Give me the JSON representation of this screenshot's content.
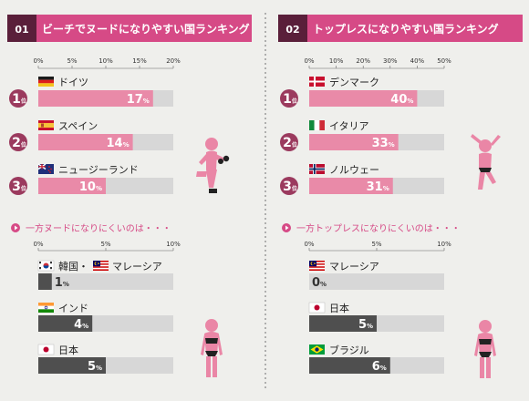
{
  "colors": {
    "background": "#efefec",
    "header_pink": "#d64a86",
    "number_tag": "#5a1f3a",
    "bar_pink": "#e98aa8",
    "bar_gray": "#4f4f4f",
    "track": "#d7d7d7",
    "badge": "#9b3a5e",
    "subheading": "#d64a86",
    "figure": "#ea86a6"
  },
  "chart_data": [
    {
      "type": "bar",
      "number": "01",
      "title": "ビーチでヌードになりやすい国ランキング",
      "xlim": [
        0,
        20
      ],
      "ticks": [
        "0%",
        "5%",
        "10%",
        "15%",
        "20%"
      ],
      "rank_suffix": "位",
      "unit": "%",
      "categories": [
        "ドイツ",
        "スペイン",
        "ニュージーランド"
      ],
      "flags": [
        "germany",
        "spain",
        "new-zealand"
      ],
      "ranks": [
        "1",
        "2",
        "3"
      ],
      "values": [
        17,
        14,
        10
      ]
    },
    {
      "type": "bar",
      "number": "02",
      "title": "トップレスになりやすい国ランキング",
      "xlim": [
        0,
        50
      ],
      "ticks": [
        "0%",
        "10%",
        "20%",
        "30%",
        "40%",
        "50%"
      ],
      "rank_suffix": "位",
      "unit": "%",
      "categories": [
        "デンマーク",
        "イタリア",
        "ノルウェー"
      ],
      "flags": [
        "denmark",
        "italy",
        "norway"
      ],
      "ranks": [
        "1",
        "2",
        "3"
      ],
      "values": [
        40,
        33,
        31
      ]
    },
    {
      "type": "bar",
      "title": "一方ヌードになりにくいのは・・・",
      "xlim": [
        0,
        10
      ],
      "ticks": [
        "0%",
        "5%",
        "10%"
      ],
      "unit": "%",
      "categories": [
        "韓国・マレーシア",
        "インド",
        "日本"
      ],
      "flags": [
        "korea+malaysia",
        "india",
        "japan"
      ],
      "values": [
        1,
        4,
        5
      ]
    },
    {
      "type": "bar",
      "title": "一方トップレスになりにくいのは・・・",
      "xlim": [
        0,
        10
      ],
      "ticks": [
        "0%",
        "5%",
        "10%"
      ],
      "unit": "%",
      "categories": [
        "マレーシア",
        "日本",
        "ブラジル"
      ],
      "flags": [
        "malaysia",
        "japan",
        "brazil"
      ],
      "values": [
        0,
        5,
        6
      ]
    }
  ]
}
